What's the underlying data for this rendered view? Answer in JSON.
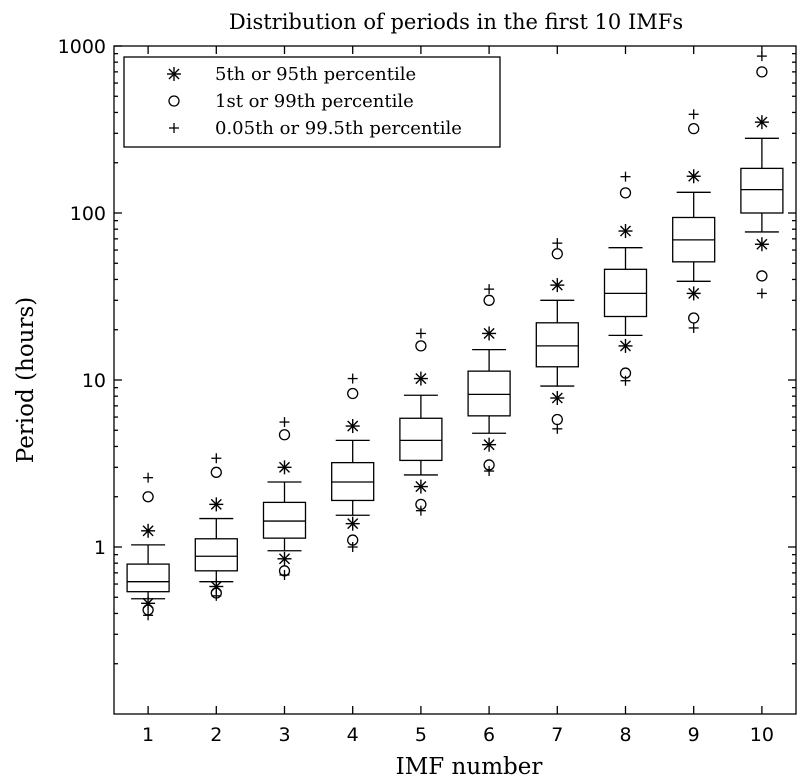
{
  "chart_data": {
    "type": "boxplot",
    "title": "Distribution of periods in the first 10 IMFs",
    "xlabel": "IMF number",
    "ylabel": "Period (hours)",
    "yscale": "log",
    "ylim": [
      0.1,
      1000
    ],
    "xlim": [
      0.5,
      10.5
    ],
    "y_ticks": [
      1,
      10,
      100,
      1000
    ],
    "y_tick_labels": [
      "1",
      "10",
      "100",
      "1000"
    ],
    "categories": [
      "1",
      "2",
      "3",
      "4",
      "5",
      "6",
      "7",
      "8",
      "9",
      "10"
    ],
    "grid": false,
    "legend_position": "top-left",
    "legend": [
      {
        "marker": "asterisk",
        "label": "5th or 95th percentile"
      },
      {
        "marker": "circle",
        "label": "1st or 99th percentile"
      },
      {
        "marker": "plus",
        "label": "0.05th or 99.5th percentile"
      }
    ],
    "boxes": [
      {
        "imf": "1",
        "whisker_low": 0.49,
        "q1": 0.54,
        "median": 0.62,
        "q3": 0.79,
        "whisker_high": 1.03,
        "p5": 0.46,
        "p95": 1.25,
        "p1": 0.42,
        "p99": 2.0,
        "p005": 0.39,
        "p995": 2.6
      },
      {
        "imf": "2",
        "whisker_low": 0.62,
        "q1": 0.72,
        "median": 0.88,
        "q3": 1.12,
        "whisker_high": 1.48,
        "p5": 0.58,
        "p95": 1.8,
        "p1": 0.53,
        "p99": 2.8,
        "p005": 0.51,
        "p995": 3.4
      },
      {
        "imf": "3",
        "whisker_low": 0.95,
        "q1": 1.13,
        "median": 1.43,
        "q3": 1.85,
        "whisker_high": 2.45,
        "p5": 0.85,
        "p95": 3.0,
        "p1": 0.72,
        "p99": 4.7,
        "p005": 0.68,
        "p995": 5.6
      },
      {
        "imf": "4",
        "whisker_low": 1.55,
        "q1": 1.9,
        "median": 2.45,
        "q3": 3.2,
        "whisker_high": 4.35,
        "p5": 1.38,
        "p95": 5.3,
        "p1": 1.1,
        "p99": 8.3,
        "p005": 1.0,
        "p995": 10.2
      },
      {
        "imf": "5",
        "whisker_low": 2.7,
        "q1": 3.3,
        "median": 4.35,
        "q3": 5.9,
        "whisker_high": 8.1,
        "p5": 2.3,
        "p95": 10.2,
        "p1": 1.8,
        "p99": 16.0,
        "p005": 1.65,
        "p995": 19.0
      },
      {
        "imf": "6",
        "whisker_low": 4.8,
        "q1": 6.1,
        "median": 8.2,
        "q3": 11.3,
        "whisker_high": 15.2,
        "p5": 4.1,
        "p95": 19.0,
        "p1": 3.1,
        "p99": 30.0,
        "p005": 2.85,
        "p995": 35.0
      },
      {
        "imf": "7",
        "whisker_low": 9.2,
        "q1": 12.0,
        "median": 16.0,
        "q3": 22.0,
        "whisker_high": 30.0,
        "p5": 7.8,
        "p95": 37.0,
        "p1": 5.8,
        "p99": 57.0,
        "p005": 5.1,
        "p995": 66.0
      },
      {
        "imf": "8",
        "whisker_low": 18.5,
        "q1": 24.0,
        "median": 33.0,
        "q3": 46.0,
        "whisker_high": 62.0,
        "p5": 16.0,
        "p95": 78.0,
        "p1": 11.0,
        "p99": 132.0,
        "p005": 9.9,
        "p995": 165.0
      },
      {
        "imf": "9",
        "whisker_low": 39.0,
        "q1": 51.0,
        "median": 69.0,
        "q3": 94.0,
        "whisker_high": 133.0,
        "p5": 33.0,
        "p95": 166.0,
        "p1": 23.5,
        "p99": 320.0,
        "p005": 20.5,
        "p995": 390.0
      },
      {
        "imf": "10",
        "whisker_low": 77.0,
        "q1": 100.0,
        "median": 138.0,
        "q3": 185.0,
        "whisker_high": 280.0,
        "p5": 65.0,
        "p95": 350.0,
        "p1": 42.0,
        "p99": 700.0,
        "p005": 33.0,
        "p995": 870.0
      }
    ]
  }
}
